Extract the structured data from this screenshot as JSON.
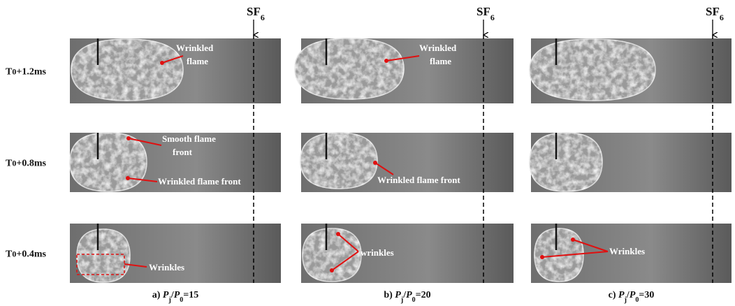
{
  "rows": [
    {
      "base": "T",
      "sub": "0",
      "rest": "+1.2ms"
    },
    {
      "base": "T",
      "sub": "0",
      "rest": "+0.8ms"
    },
    {
      "base": "T",
      "sub": "0",
      "rest": "+0.4ms"
    }
  ],
  "columns": [
    {
      "marker": {
        "base": "SF",
        "sub": "6"
      },
      "caption": {
        "label": "a)",
        "numerator": "P",
        "numerator_sub": "j",
        "separator": "/",
        "denominator": "P",
        "denominator_sub": "0",
        "value": "=15"
      }
    },
    {
      "marker": {
        "base": "SF",
        "sub": "6"
      },
      "caption": {
        "label": "b)",
        "numerator": "P",
        "numerator_sub": "j",
        "separator": "/",
        "denominator": "P",
        "denominator_sub": "0",
        "value": "=20"
      }
    },
    {
      "marker": {
        "base": "SF",
        "sub": "6"
      },
      "caption": {
        "label": "c)",
        "numerator": "P",
        "numerator_sub": "j",
        "separator": "/",
        "denominator": "P",
        "denominator_sub": "0",
        "value": "=30"
      }
    }
  ],
  "annotations": [
    {
      "lines": [
        "Wrinkled",
        "flame"
      ]
    },
    {
      "lines": [
        "Wrinkled",
        "flame"
      ]
    },
    {
      "lines": [
        "Smooth flame",
        "front"
      ]
    },
    {
      "lines": [
        "Wrinkled flame front"
      ]
    },
    {
      "lines": [
        "Wrinkled flame front"
      ]
    },
    {
      "lines": [
        "Wrinkles"
      ]
    },
    {
      "lines": [
        "wrinkles"
      ]
    },
    {
      "lines": [
        "Wrinkles"
      ]
    }
  ]
}
